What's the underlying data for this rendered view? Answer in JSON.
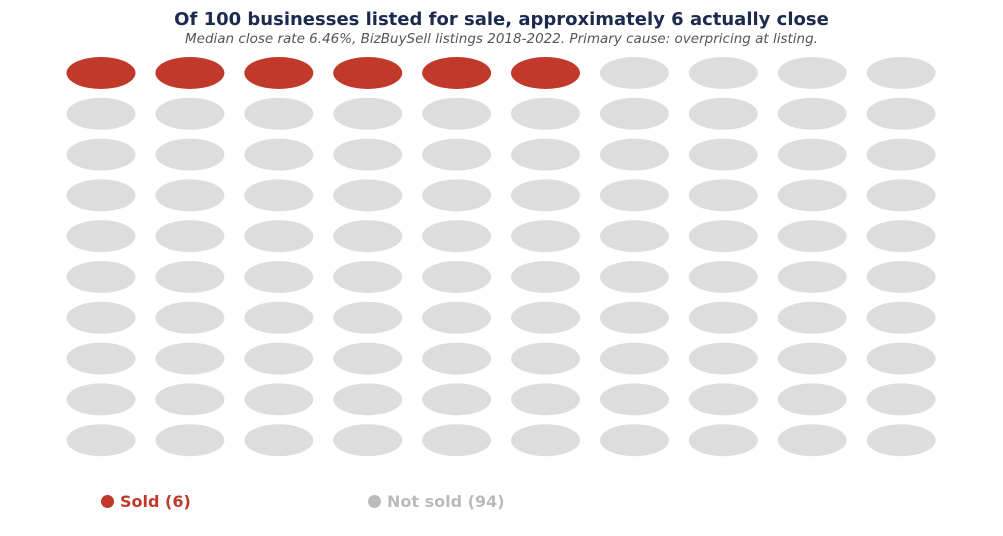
{
  "chart_data": {
    "type": "waffle",
    "title": "Of 100 businesses listed for sale, approximately 6 actually close",
    "subtitle": "Median close rate 6.46%, BizBuySell listings 2018-2022. Primary cause: overpricing at listing.",
    "total": 100,
    "rows": 10,
    "cols": 10,
    "categories": [
      {
        "name": "Sold",
        "value": 6,
        "color": "#C0392B",
        "legend_label": "Sold (6)"
      },
      {
        "name": "Not sold",
        "value": 94,
        "color": "#DDDDDD",
        "legend_label": "Not sold (94)",
        "legend_color": "#BBBBBB"
      }
    ],
    "legend_position": "bottom-left"
  }
}
